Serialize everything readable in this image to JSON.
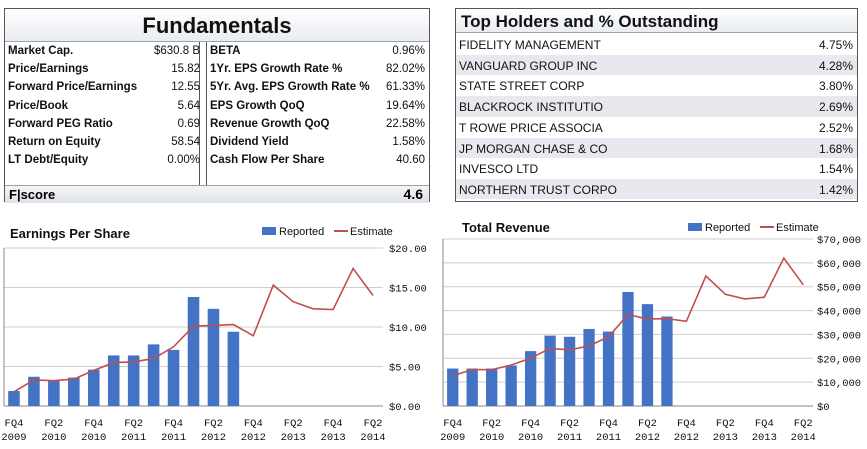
{
  "fundamentals": {
    "title": "Fundamentals",
    "rows": [
      {
        "label1": "Market Cap.",
        "value1": "$630.8 B",
        "label2": "BETA",
        "value2": "0.96%"
      },
      {
        "label1": "Price/Earnings",
        "value1": "15.82",
        "label2": "1Yr. EPS Growth Rate %",
        "value2": "82.02%"
      },
      {
        "label1": "Forward Price/Earnings",
        "value1": "12.55",
        "label2": "5Yr. Avg. EPS Growth Rate %",
        "value2": "61.33%"
      },
      {
        "label1": "Price/Book",
        "value1": "5.64",
        "label2": "EPS Growth QoQ",
        "value2": "19.64%"
      },
      {
        "label1": "Forward PEG Ratio",
        "value1": "0.69",
        "label2": "Revenue Growth QoQ",
        "value2": "22.58%"
      },
      {
        "label1": "Return on Equity",
        "value1": "58.54",
        "label2": "Dividend Yield",
        "value2": "1.58%"
      },
      {
        "label1": "LT Debt/Equity",
        "value1": "0.00%",
        "label2": "Cash Flow Per Share",
        "value2": "40.60"
      }
    ],
    "fscore_label": "F|score",
    "fscore_value": "4.6"
  },
  "holders": {
    "title": "Top Holders and % Outstanding",
    "rows": [
      {
        "name": "FIDELITY MANAGEMENT",
        "pct": "4.75%"
      },
      {
        "name": "VANGUARD GROUP INC",
        "pct": "4.28%"
      },
      {
        "name": "STATE STREET CORP",
        "pct": "3.80%"
      },
      {
        "name": "BLACKROCK INSTITUTIO",
        "pct": "2.69%"
      },
      {
        "name": "T ROWE PRICE ASSOCIA",
        "pct": "2.52%"
      },
      {
        "name": "JP MORGAN CHASE & CO",
        "pct": "1.68%"
      },
      {
        "name": "INVESCO LTD",
        "pct": "1.54%"
      },
      {
        "name": "NORTHERN TRUST CORPO",
        "pct": "1.42%"
      }
    ]
  },
  "colors": {
    "bar": "#4472c4",
    "line": "#c0504d",
    "grid": "#cfcfcf"
  },
  "chart_data": [
    {
      "type": "bar",
      "title": "Earnings Per Share",
      "legend": [
        "Reported",
        "Estimate"
      ],
      "ylim": [
        0,
        20
      ],
      "yticks": [
        "$20.00",
        "$15.00",
        "$10.00",
        "$5.00",
        "$0.00"
      ],
      "xtick_labels": [
        [
          "FQ4",
          "2009"
        ],
        [
          "FQ2",
          "2010"
        ],
        [
          "FQ4",
          "2010"
        ],
        [
          "FQ2",
          "2011"
        ],
        [
          "FQ4",
          "2011"
        ],
        [
          "FQ2",
          "2012"
        ],
        [
          "FQ4",
          "2012"
        ],
        [
          "FQ2",
          "2013"
        ],
        [
          "FQ4",
          "2013"
        ],
        [
          "FQ2",
          "2014"
        ]
      ],
      "series": [
        {
          "name": "Reported",
          "values": [
            1.9,
            3.7,
            3.3,
            3.6,
            4.6,
            6.4,
            6.4,
            7.8,
            7.1,
            13.8,
            12.3,
            9.4
          ]
        },
        {
          "name": "Estimate",
          "values": [
            1.8,
            3.3,
            3.2,
            3.4,
            4.5,
            5.5,
            5.6,
            6.0,
            7.5,
            10.1,
            10.2,
            10.3,
            8.9,
            15.3,
            13.2,
            12.3,
            12.2,
            17.4,
            14.0
          ]
        }
      ]
    },
    {
      "type": "bar",
      "title": "Total Revenue",
      "legend": [
        "Reported",
        "Estimate"
      ],
      "ylim": [
        0,
        70000
      ],
      "yticks": [
        "$70,000",
        "$60,000",
        "$50,000",
        "$40,000",
        "$30,000",
        "$20,000",
        "$10,000",
        "$0"
      ],
      "xtick_labels": [
        [
          "FQ4",
          "2009"
        ],
        [
          "FQ2",
          "2010"
        ],
        [
          "FQ4",
          "2010"
        ],
        [
          "FQ2",
          "2011"
        ],
        [
          "FQ4",
          "2011"
        ],
        [
          "FQ2",
          "2012"
        ],
        [
          "FQ4",
          "2012"
        ],
        [
          "FQ2",
          "2013"
        ],
        [
          "FQ4",
          "2013"
        ],
        [
          "FQ2",
          "2014"
        ]
      ],
      "series": [
        {
          "name": "Reported",
          "values": [
            15700,
            15700,
            15700,
            17000,
            23000,
            29500,
            29000,
            32300,
            31200,
            47800,
            42700,
            37500
          ]
        },
        {
          "name": "Estimate",
          "values": [
            12600,
            15300,
            15200,
            17200,
            20000,
            24200,
            23500,
            25200,
            29000,
            38300,
            36500,
            36600,
            35500,
            54500,
            46800,
            44900,
            45600,
            62000,
            50800
          ]
        }
      ]
    }
  ]
}
